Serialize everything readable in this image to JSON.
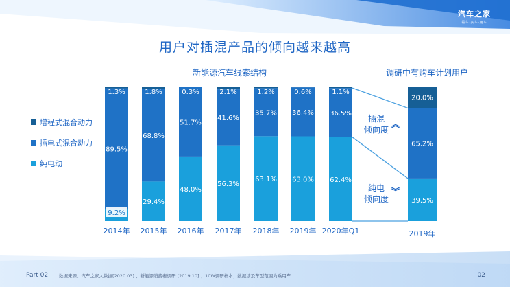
{
  "brand": {
    "logo_text": "汽车之家",
    "logo_sub": "看车·买车·用车"
  },
  "page_title": "用户对插混产品的倾向越来越高",
  "left_subtitle": "新能源汽车线索结构",
  "right_subtitle": "调研中有购车计划用户",
  "labels": {
    "phev_tendency": "插混\n倾向度",
    "bev_tendency": "纯电\n倾向度"
  },
  "icons": {
    "up": "double-chevron-up-icon",
    "down": "double-chevron-down-icon"
  },
  "footer": {
    "part": "Part 02",
    "source": "数据来源：汽车之家大数据[2020.03] ，新能源消费者调研 [2019.10] ，10W调研样本；数据涉及车型范围为乘用车",
    "page": "02"
  },
  "colors": {
    "bev": "#1aa0dc",
    "phev": "#1f72c6",
    "erev": "#165f96",
    "title": "#1f66c4",
    "accent": "#2a6fd0"
  },
  "chart_data": [
    {
      "type": "bar",
      "stacked": true,
      "title": "新能源汽车线索结构",
      "categories": [
        "2014年",
        "2015年",
        "2016年",
        "2017年",
        "2018年",
        "2019年",
        "2020年Q1"
      ],
      "series": [
        {
          "name": "纯电动",
          "values": [
            9.2,
            29.4,
            48.0,
            56.3,
            63.1,
            63.0,
            62.4
          ],
          "labels": [
            "9.2%",
            "29.4%",
            "48.0%",
            "56.3%",
            "63.1%",
            "63.0%",
            "62.4%"
          ]
        },
        {
          "name": "插电式混合动力",
          "values": [
            89.5,
            68.8,
            51.7,
            41.6,
            35.7,
            36.4,
            36.5
          ],
          "labels": [
            "89.5%",
            "68.8%",
            "51.7%",
            "41.6%",
            "35.7%",
            "36.4%",
            "36.5%"
          ]
        },
        {
          "name": "增程式混合动力",
          "values": [
            1.3,
            1.8,
            0.3,
            2.1,
            1.2,
            0.6,
            1.1
          ],
          "labels": [
            "1.3%",
            "1.8%",
            "0.3%",
            "2.1%",
            "1.2%",
            "0.6%",
            "1.1%"
          ]
        }
      ],
      "legend": [
        "增程式混合动力",
        "插电式混合动力",
        "纯电动"
      ],
      "ylim": [
        0,
        100
      ]
    },
    {
      "type": "bar",
      "stacked": true,
      "title": "调研中有购车计划用户",
      "categories": [
        "2019年"
      ],
      "series": [
        {
          "name": "纯电动",
          "values": [
            39.5
          ],
          "labels": [
            "39.5%"
          ]
        },
        {
          "name": "插电式混合动力",
          "values": [
            65.2
          ],
          "labels": [
            "65.2%"
          ]
        },
        {
          "name": "增程式混合动力",
          "values": [
            20.0
          ],
          "labels": [
            "20.0%"
          ]
        }
      ],
      "ylim": [
        0,
        124.7
      ]
    }
  ]
}
